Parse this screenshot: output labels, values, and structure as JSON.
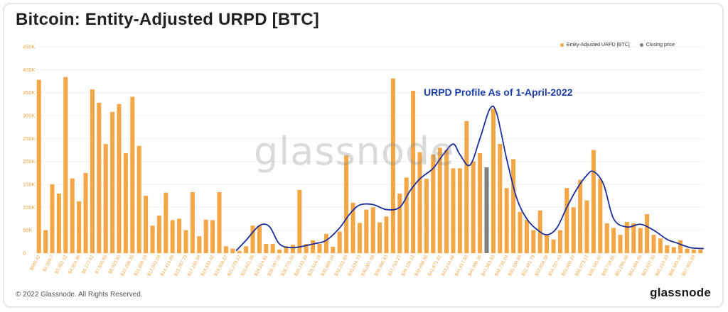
{
  "header": {
    "title": "Bitcoin: Entity-Adjusted URPD [BTC]"
  },
  "footer": {
    "copyright": "© 2022 Glassnode. All Rights Reserved.",
    "brand": "glassnode"
  },
  "watermark": "glassnode",
  "annotation": "URPD Profile As of 1-April-2022",
  "colors": {
    "bar": "#f2a646",
    "closing": "#7f7f7f",
    "curve": "#1c2f9c",
    "grid": "#efefef",
    "axis_text": "#f2a646"
  },
  "chart_data": {
    "type": "bar",
    "title": "Bitcoin: Entity-Adjusted URPD [BTC]",
    "xlabel": "",
    "ylabel": "",
    "ylim": [
      0,
      450000
    ],
    "grid": true,
    "legend_position": "top-right",
    "y_ticks": [
      "0",
      "50K",
      "100K",
      "150K",
      "200K",
      "250K",
      "300K",
      "350K",
      "400K",
      "450K"
    ],
    "x_tick_labels": [
      "$688.42",
      "$2,009.7",
      "$3,452.12",
      "$4,904.96",
      "$6,177.61",
      "$7,500.65",
      "$8,923.50",
      "$10,296.35",
      "$11,668.19",
      "$13,042.04",
      "$14,414.89",
      "$15,787.73",
      "$17,160.58",
      "$18,533.42",
      "$19,906.27",
      "$21,279.12",
      "$22,651.96",
      "$24,024.81",
      "$25,397.66",
      "$26,770.50",
      "$28,143.35",
      "$29,516.19",
      "$30,889.04",
      "$32,261.89",
      "$33,634.73",
      "$35,007.58",
      "$36,380.43",
      "$37,753.27",
      "$39,126.12",
      "$40,498.96",
      "$41,871.81",
      "$43,244.66",
      "$44,617.50",
      "$45,990.35",
      "$47,363.20",
      "$48,736.04",
      "$50,108.89",
      "$51,481.73",
      "$52,854.58",
      "$54,227.43",
      "$55,600.27",
      "$56,973.12",
      "$58,345.97",
      "$59,718.81",
      "$61,091.66",
      "$62,464.50",
      "$63,837.35",
      "$65,210.20",
      "$66,583.04",
      "$67,955.89"
    ],
    "series": [
      {
        "name": "Entity-Adjusted URPD [BTC]",
        "values": [
          378000,
          50000,
          150000,
          130000,
          384000,
          163000,
          113000,
          175000,
          357000,
          328000,
          238000,
          308000,
          325000,
          218000,
          341000,
          234000,
          125000,
          60000,
          82000,
          132000,
          72000,
          75000,
          50000,
          133000,
          37000,
          73000,
          72000,
          133000,
          15000,
          10000,
          5000,
          15000,
          60000,
          60000,
          20000,
          20000,
          8000,
          15000,
          18000,
          138000,
          20000,
          28000,
          20000,
          42000,
          14000,
          47000,
          213000,
          110000,
          66000,
          95000,
          100000,
          67000,
          80000,
          381000,
          130000,
          165000,
          354000,
          220000,
          162000,
          215000,
          230000,
          225000,
          185000,
          185000,
          288000,
          200000,
          218000,
          187000,
          315000,
          238000,
          142000,
          205000,
          90000,
          73000,
          50000,
          93000,
          40000,
          30000,
          50000,
          142000,
          100000,
          160000,
          115000,
          225000,
          162000,
          65000,
          55000,
          40000,
          68000,
          65000,
          55000,
          85000,
          40000,
          32000,
          17000,
          13000,
          28000,
          10000,
          8000,
          8000
        ]
      },
      {
        "name": "Closing price",
        "x_price": "$45,990.35",
        "value": 187000
      }
    ],
    "closing_bar_index": 67,
    "urpd_profile_curve": {
      "x_bar_index": [
        29.5,
        31,
        33,
        34.5,
        36,
        38,
        41,
        43,
        45,
        46.5,
        48,
        50,
        52,
        54,
        55.5,
        57,
        59,
        60.5,
        62,
        63,
        64.5,
        66,
        67.5,
        68.5,
        70,
        71.5,
        73,
        74.5,
        76,
        77.5,
        79,
        80.5,
        82,
        83,
        84.5,
        86,
        88,
        90,
        92,
        94,
        95.5,
        97.5,
        99.5
      ],
      "y": [
        5000,
        28000,
        60000,
        58000,
        20000,
        12000,
        20000,
        28000,
        55000,
        85000,
        105000,
        106000,
        95000,
        100000,
        135000,
        162000,
        185000,
        215000,
        238000,
        215000,
        192000,
        250000,
        315000,
        305000,
        205000,
        120000,
        75000,
        52000,
        40000,
        55000,
        100000,
        140000,
        170000,
        178000,
        150000,
        75000,
        57000,
        63000,
        50000,
        30000,
        22000,
        12000,
        10000
      ]
    }
  }
}
